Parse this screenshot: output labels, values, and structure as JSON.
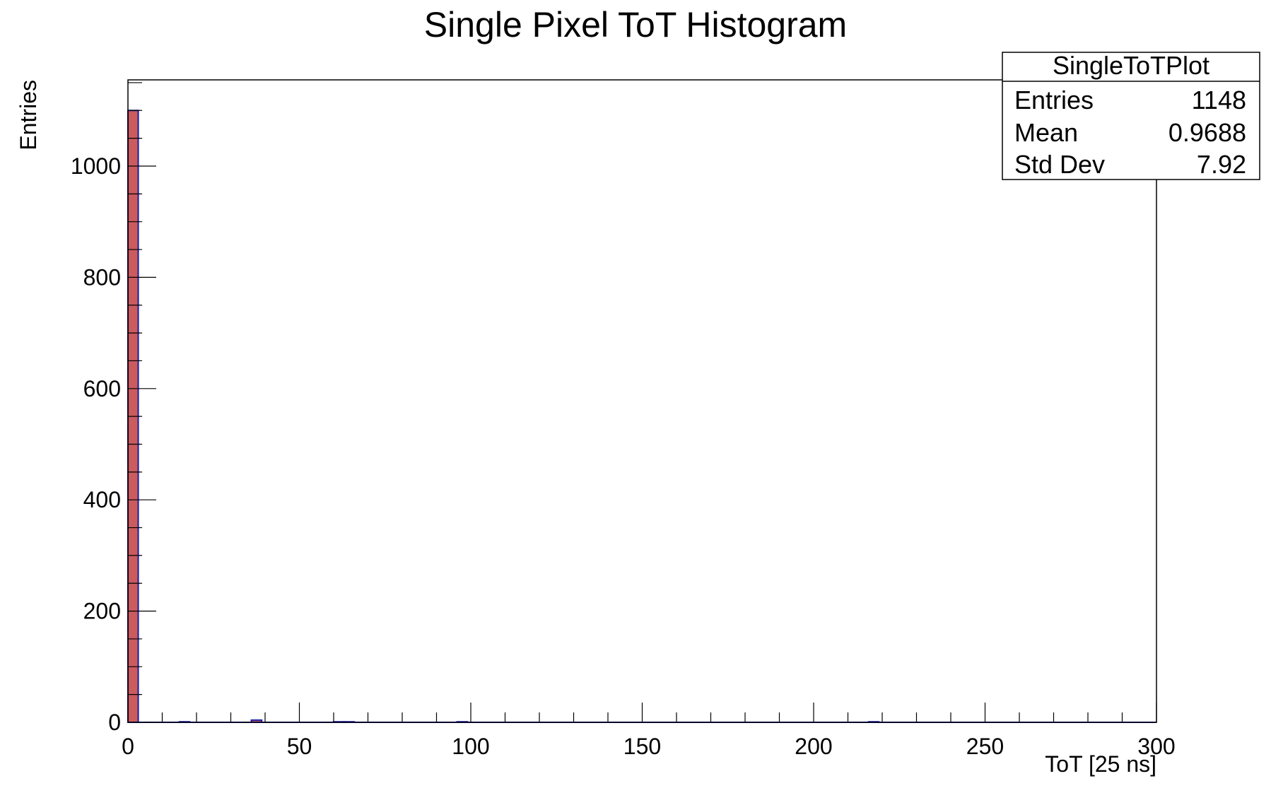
{
  "chart_data": {
    "type": "bar",
    "title": "Single Pixel ToT Histogram",
    "xlabel": "ToT [25 ns]",
    "ylabel": "Entries",
    "xlim": [
      0,
      300
    ],
    "ylim": [
      0,
      1155
    ],
    "bin_width": 3,
    "bins": [
      {
        "x": 0,
        "value": 1100
      },
      {
        "x": 15,
        "value": 1
      },
      {
        "x": 36,
        "value": 4
      },
      {
        "x": 60,
        "value": 1
      },
      {
        "x": 63,
        "value": 1
      },
      {
        "x": 96,
        "value": 1
      },
      {
        "x": 216,
        "value": 1
      }
    ],
    "x_ticks": [
      0,
      50,
      100,
      150,
      200,
      250,
      300
    ],
    "x_tick_labels": [
      "0",
      "50",
      "100",
      "150",
      "200",
      "250",
      "300"
    ],
    "y_ticks": [
      0,
      200,
      400,
      600,
      800,
      1000
    ],
    "y_tick_labels": [
      "0",
      "200",
      "400",
      "600",
      "800",
      "1000"
    ],
    "grid": false,
    "fill_color": "#cc5b5b",
    "line_color": "#1a1aa6",
    "stats_box": {
      "title": "SingleToTPlot",
      "rows": [
        {
          "label": "Entries",
          "value": "1148"
        },
        {
          "label": "Mean",
          "value": "0.9688"
        },
        {
          "label": "Std Dev",
          "value": "7.92"
        }
      ],
      "placement": "top-right"
    }
  }
}
